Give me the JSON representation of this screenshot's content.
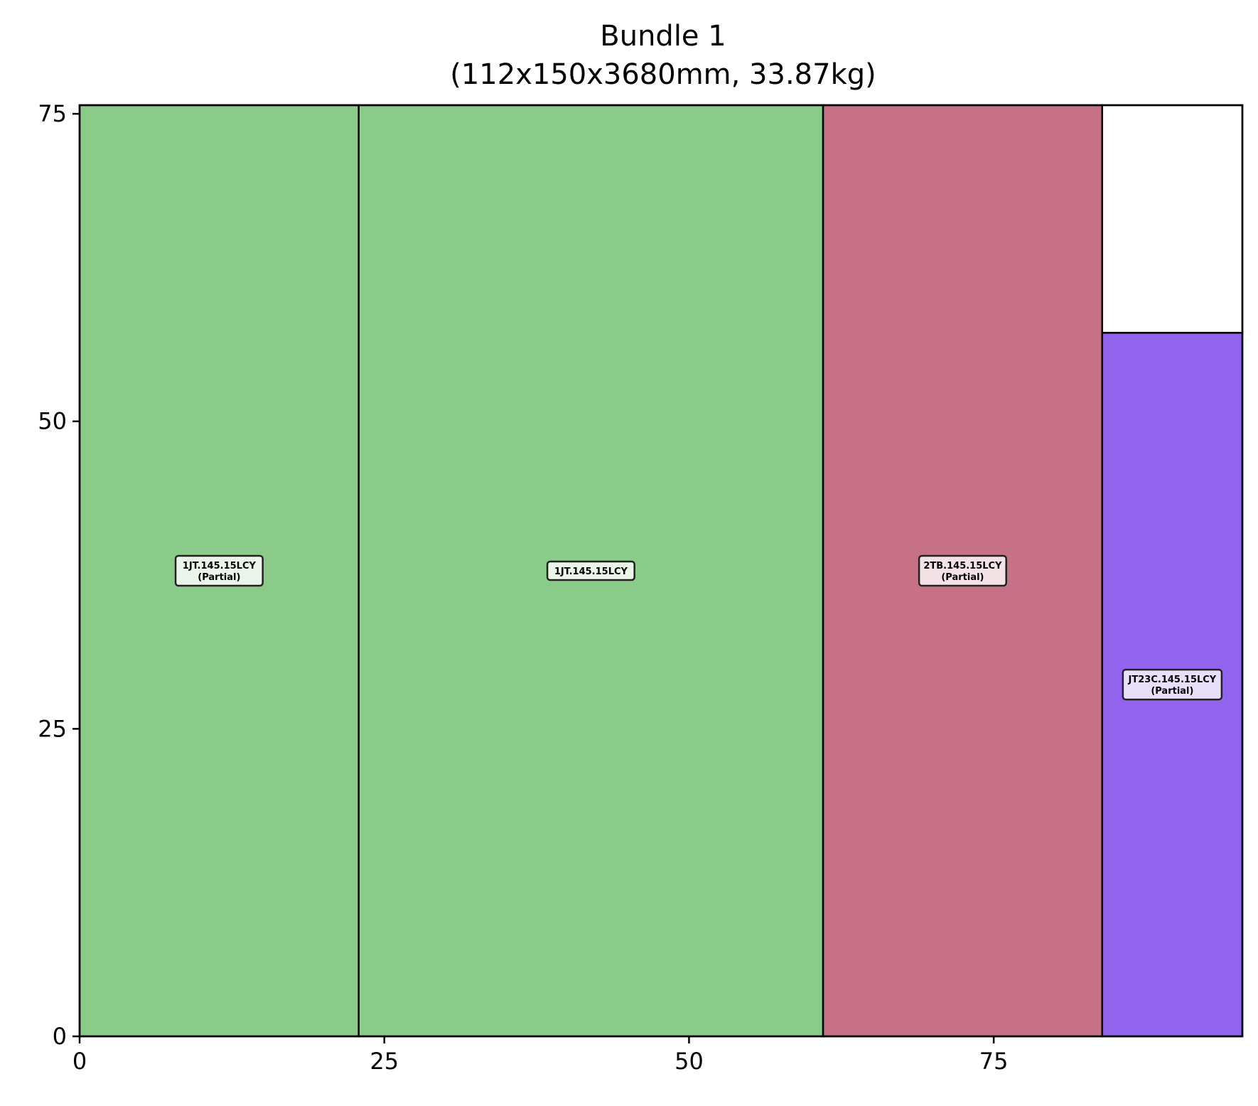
{
  "chart": {
    "title_line1": "Bundle 1",
    "title_line2": "(112x150x3680mm, 33.87kg)"
  },
  "chart_data": {
    "type": "rect-packing",
    "title": "Bundle 1",
    "subtitle": "(112x150x3680mm, 33.87kg)",
    "xlabel": "",
    "ylabel": "",
    "xlim": [
      0,
      95.4
    ],
    "ylim": [
      0,
      75.7
    ],
    "xticks": [
      "0",
      "25",
      "50",
      "75"
    ],
    "yticks": [
      "0",
      "25",
      "50",
      "75"
    ],
    "xtick_values": [
      0,
      25,
      50,
      75
    ],
    "ytick_values": [
      0,
      25,
      50,
      75
    ],
    "grid": false,
    "legend": "none",
    "pieces": [
      {
        "label": "1JT.145.15LCY",
        "note": "(Partial)",
        "x": 0,
        "y": 0,
        "w": 22.9,
        "h": 75.7,
        "color": "#8bcb89",
        "label_bg": "#eaf4e9"
      },
      {
        "label": "1JT.145.15LCY",
        "note": "",
        "x": 22.9,
        "y": 0,
        "w": 38.1,
        "h": 75.7,
        "color": "#8bcb89",
        "label_bg": "#eaf4e9"
      },
      {
        "label": "2TB.145.15LCY",
        "note": "(Partial)",
        "x": 61.0,
        "y": 0,
        "w": 22.9,
        "h": 75.7,
        "color": "#c77187",
        "label_bg": "#f3e2e6"
      },
      {
        "label": "JT23C.145.15LCY",
        "note": "(Partial)",
        "x": 83.9,
        "y": 0,
        "w": 11.5,
        "h": 57.2,
        "color": "#9264ed",
        "label_bg": "#e8e0fb"
      }
    ]
  }
}
